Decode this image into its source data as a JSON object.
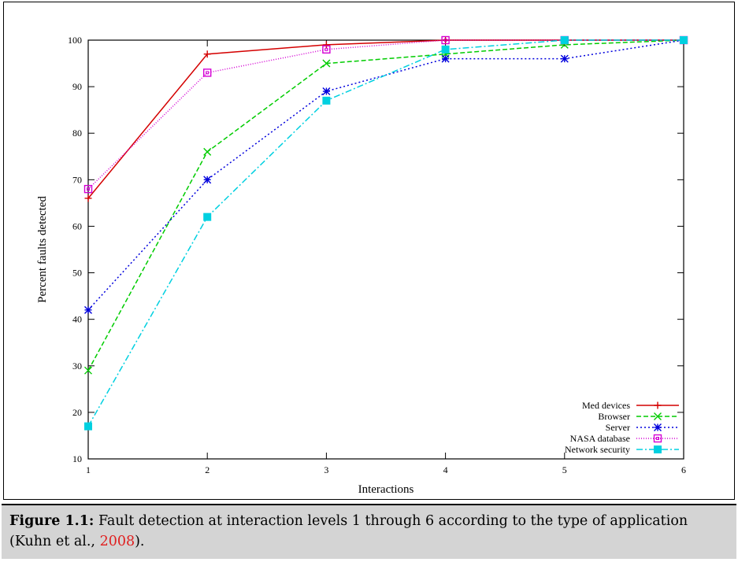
{
  "chart_data": {
    "type": "line",
    "title": "",
    "xlabel": "Interactions",
    "ylabel": "Percent faults detected",
    "x": [
      1,
      2,
      3,
      4,
      5,
      6
    ],
    "xlim": [
      1,
      6
    ],
    "ylim": [
      10,
      100
    ],
    "xticks": [
      1,
      2,
      3,
      4,
      5,
      6
    ],
    "yticks": [
      10,
      20,
      30,
      40,
      50,
      60,
      70,
      80,
      90,
      100
    ],
    "grid": false,
    "legend_position": "bottom-right",
    "series": [
      {
        "name": "Med devices",
        "values": [
          66,
          97,
          99,
          100,
          100,
          100
        ],
        "color": "#d40000",
        "marker": "plus",
        "dash": ""
      },
      {
        "name": "Browser",
        "values": [
          29,
          76,
          95,
          97,
          99,
          100
        ],
        "color": "#00cc00",
        "marker": "x",
        "dash": "6,3"
      },
      {
        "name": "Server",
        "values": [
          42,
          70,
          89,
          96,
          96,
          100
        ],
        "color": "#0000dd",
        "marker": "star",
        "dash": "2,3"
      },
      {
        "name": "NASA database",
        "values": [
          68,
          93,
          98,
          100,
          100,
          100
        ],
        "color": "#d400d4",
        "marker": "square-open",
        "dash": "1,2"
      },
      {
        "name": "Network security",
        "values": [
          17,
          62,
          87,
          98,
          100,
          100
        ],
        "color": "#00d0e0",
        "marker": "square-filled",
        "dash": "8,3,2,3"
      }
    ]
  },
  "caption": {
    "label": "Figure 1.1:",
    "text": " Fault detection at interaction levels 1 through 6 according to the type of application (Kuhn et al., ",
    "citation_year": "2008",
    "end": ")."
  }
}
